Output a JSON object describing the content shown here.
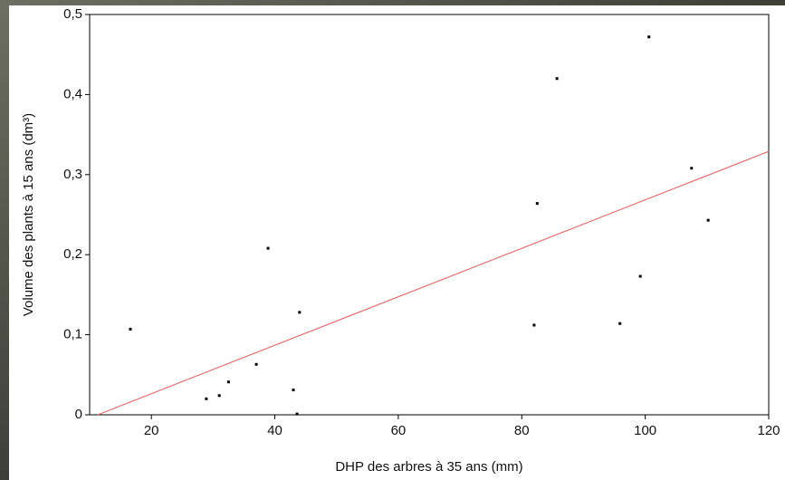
{
  "chart_data": {
    "type": "scatter",
    "x_label": "DHP des arbres à 35 ans (mm)",
    "y_label": "Volume des plants à 15 ans (dm³)",
    "series": [
      {
        "color": "#000000",
        "x": [
          16.6,
          28.9,
          31.0,
          32.5,
          37.0,
          38.9,
          43.0,
          44.0,
          43.6,
          82.0,
          82.5,
          85.7,
          95.9,
          99.2,
          100.6,
          107.5,
          110.2
        ],
        "values": [
          0.107,
          0.02,
          0.024,
          0.041,
          0.063,
          0.208,
          0.031,
          0.128,
          0.001,
          0.112,
          0.264,
          0.42,
          0.114,
          0.173,
          0.472,
          0.308,
          0.243
        ]
      }
    ],
    "trendline": {
      "color": "#e07070",
      "x": [
        11.3,
        120
      ],
      "y": [
        0,
        0.329
      ]
    },
    "xlim": [
      10,
      120
    ],
    "xticks": [
      20,
      40,
      60,
      80,
      100,
      120
    ],
    "ylim": [
      0,
      0.5
    ],
    "yticks": [
      0,
      {
        "value": 0.1,
        "label": "0,1"
      },
      {
        "value": 0.2,
        "label": "0,2"
      },
      {
        "value": 0.3,
        "label": "0,3"
      },
      {
        "value": 0.4,
        "label": "0,4"
      },
      {
        "value": 0.5,
        "label": "0,5"
      }
    ]
  }
}
